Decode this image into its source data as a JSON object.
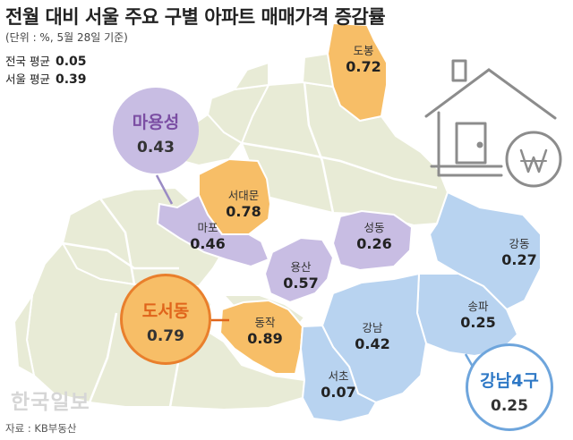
{
  "title": "전월 대비 서울 주요 구별 아파트 매매가격 증감률",
  "subtitle": "(단위 : %, 5월 28일 기준)",
  "averages": [
    {
      "label": "전국 평균",
      "value": "0.05"
    },
    {
      "label": "서울 평균",
      "value": "0.39"
    }
  ],
  "districts": {
    "dobong": {
      "name": "도봉",
      "value": "0.72"
    },
    "seodaemun": {
      "name": "서대문",
      "value": "0.78"
    },
    "mapo": {
      "name": "마포",
      "value": "0.46"
    },
    "yongsan": {
      "name": "용산",
      "value": "0.57"
    },
    "seongdong": {
      "name": "성동",
      "value": "0.26"
    },
    "dongjak": {
      "name": "동작",
      "value": "0.89"
    },
    "gangnam": {
      "name": "강남",
      "value": "0.42"
    },
    "seocho": {
      "name": "서초",
      "value": "0.07"
    },
    "songpa": {
      "name": "송파",
      "value": "0.25"
    },
    "gangdong": {
      "name": "강동",
      "value": "0.27"
    }
  },
  "groups": {
    "mayongseong": {
      "name": "마용성",
      "value": "0.43"
    },
    "doseodong": {
      "name": "도서동",
      "value": "0.79"
    },
    "gangnam4": {
      "name": "강남4구",
      "value": "0.25"
    }
  },
  "watermark": "한국일보",
  "source": "자료 : KB부동산",
  "colors": {
    "orange": "#f7be67",
    "purple": "#c8bde3",
    "blue": "#b8d3f0",
    "base": "#e8ebd6",
    "border": "#ffffff",
    "mayongseong_text": "#7b4ea3",
    "doseodong_text": "#e0641b",
    "gangnam4_text": "#2f79c6"
  },
  "icons": [
    "house-won-icon"
  ]
}
